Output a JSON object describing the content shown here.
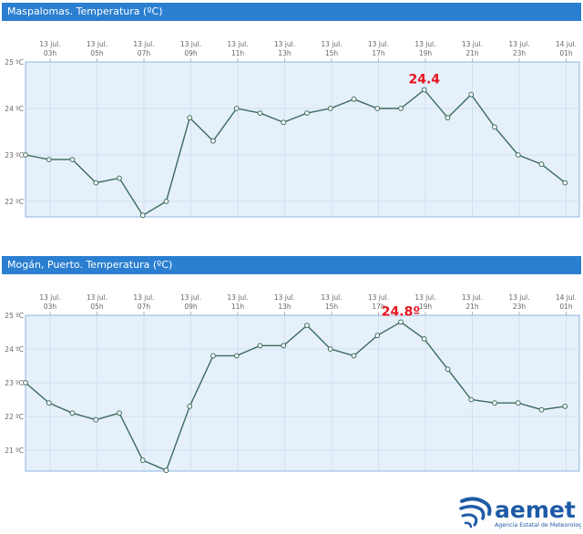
{
  "charts": [
    {
      "title": "Maspalomas. Temperatura (ºC)",
      "max_label": "24.4",
      "x_ticks": [
        {
          "l1": "13 jul.",
          "l2": "03h"
        },
        {
          "l1": "13 jul.",
          "l2": "05h"
        },
        {
          "l1": "13 jul.",
          "l2": "07h"
        },
        {
          "l1": "13 jul.",
          "l2": "09h"
        },
        {
          "l1": "13 jul.",
          "l2": "11h"
        },
        {
          "l1": "13 jul.",
          "l2": "13h"
        },
        {
          "l1": "13 jul.",
          "l2": "15h"
        },
        {
          "l1": "13 jul.",
          "l2": "17h"
        },
        {
          "l1": "13 jul.",
          "l2": "19h"
        },
        {
          "l1": "13 jul.",
          "l2": "21h"
        },
        {
          "l1": "13 jul.",
          "l2": "23h"
        },
        {
          "l1": "14 jul.",
          "l2": "01h"
        }
      ],
      "y_ticks": [
        "22 ºC",
        "23 ºC",
        "24 ºC",
        "25 ºC"
      ]
    },
    {
      "title": "Mogán, Puerto. Temperatura (ºC)",
      "max_label": "24.8º",
      "x_ticks": [
        {
          "l1": "13 jul.",
          "l2": "03h"
        },
        {
          "l1": "13 jul.",
          "l2": "05h"
        },
        {
          "l1": "13 jul.",
          "l2": "07h"
        },
        {
          "l1": "13 jul.",
          "l2": "09h"
        },
        {
          "l1": "13 jul.",
          "l2": "11h"
        },
        {
          "l1": "13 jul.",
          "l2": "13h"
        },
        {
          "l1": "13 jul.",
          "l2": "15h"
        },
        {
          "l1": "13 jul.",
          "l2": "17h"
        },
        {
          "l1": "13 jul.",
          "l2": "19h"
        },
        {
          "l1": "13 jul.",
          "l2": "21h"
        },
        {
          "l1": "13 jul.",
          "l2": "23h"
        },
        {
          "l1": "14 jul.",
          "l2": "01h"
        }
      ],
      "y_ticks": [
        "21 ºC",
        "22 ºC",
        "23 ºC",
        "24 ºC",
        "25 ºC"
      ]
    }
  ],
  "logo": {
    "word": "aemet",
    "subtitle": "Agencia Estatal de Meteorología"
  },
  "colors": {
    "header_bg": "#2b7fd0",
    "plot_bg": "#e6f0fb",
    "line": "#3d6b5e",
    "border": "#8fb4e0",
    "max_label": "#e8141e"
  },
  "chart_data": [
    {
      "type": "line",
      "title": "Maspalomas. Temperatura (ºC)",
      "x": [
        "02h",
        "03h",
        "04h",
        "05h",
        "06h",
        "07h",
        "08h",
        "09h",
        "10h",
        "11h",
        "12h",
        "13h",
        "14h",
        "15h",
        "16h",
        "17h",
        "18h",
        "19h",
        "20h",
        "21h",
        "22h",
        "23h",
        "00h",
        "01h"
      ],
      "y": [
        23.0,
        22.9,
        22.9,
        22.4,
        22.5,
        21.7,
        22.0,
        23.8,
        23.3,
        24.0,
        23.9,
        23.7,
        23.9,
        24.0,
        24.2,
        24.0,
        24.0,
        24.4,
        23.8,
        24.3,
        23.6,
        23.0,
        22.8,
        22.4
      ],
      "ylim": [
        21.7,
        25.0
      ],
      "max_annotation": "24.4",
      "grid": true
    },
    {
      "type": "line",
      "title": "Mogán, Puerto. Temperatura (ºC)",
      "x": [
        "02h",
        "03h",
        "04h",
        "05h",
        "06h",
        "07h",
        "08h",
        "09h",
        "10h",
        "11h",
        "12h",
        "13h",
        "14h",
        "15h",
        "16h",
        "17h",
        "18h",
        "19h",
        "20h",
        "21h",
        "22h",
        "23h",
        "00h",
        "01h"
      ],
      "y": [
        23.0,
        22.4,
        22.1,
        21.9,
        22.1,
        20.7,
        20.4,
        22.3,
        23.8,
        23.8,
        24.1,
        24.1,
        24.7,
        24.0,
        23.8,
        24.4,
        24.8,
        24.3,
        23.4,
        22.5,
        22.4,
        22.4,
        22.2,
        22.3
      ],
      "ylim": [
        20.4,
        25.0
      ],
      "max_annotation": "24.8º",
      "grid": true
    }
  ]
}
